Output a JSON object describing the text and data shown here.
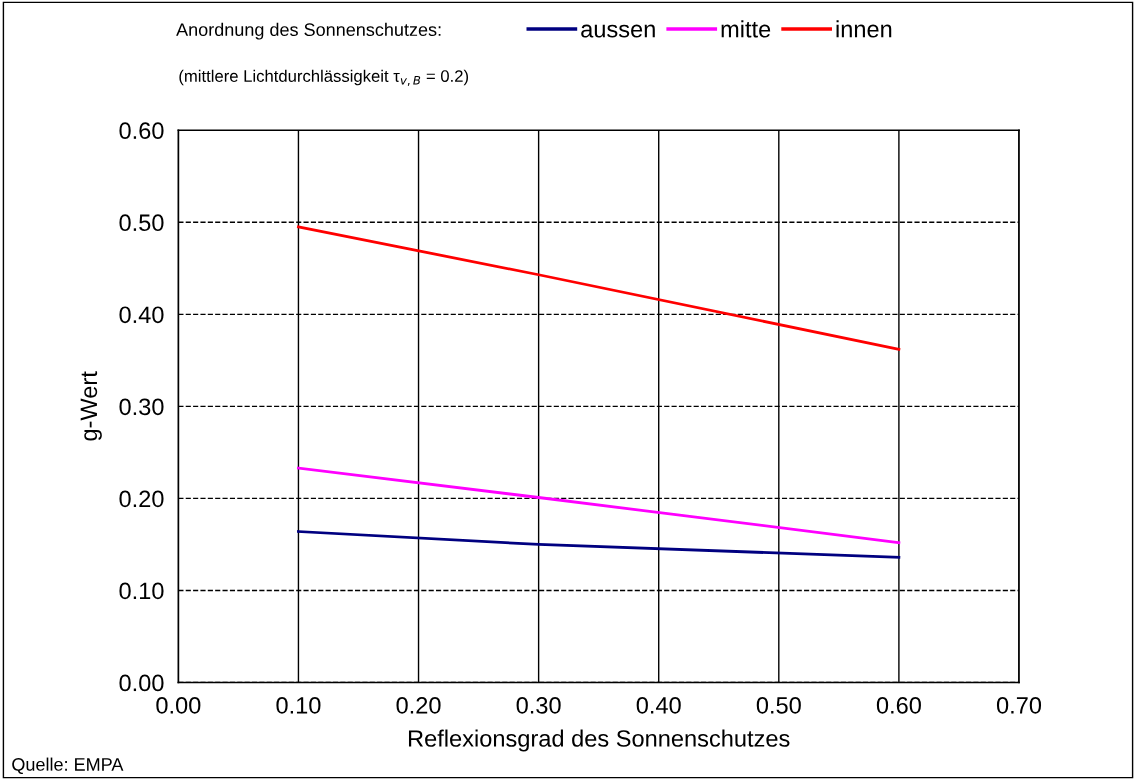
{
  "chart_data": {
    "type": "line",
    "subtitle": "(mittlere Lichtdurchlässigkeit τ$_{v,B}$ = 0.2)",
    "legend_title": "Anordnung des Sonnenschutzes:",
    "xlabel": "Reflexionsgrad des Sonnenschutzes",
    "ylabel": "g-Wert",
    "x": [
      0.1,
      0.3,
      0.6
    ],
    "series": [
      {
        "name": "aussen",
        "color": "#000080",
        "values": [
          0.164,
          0.15,
          0.136
        ]
      },
      {
        "name": "mitte",
        "color": "#ff00ff",
        "values": [
          0.233,
          0.201,
          0.152
        ]
      },
      {
        "name": "innen",
        "color": "#ff0000",
        "values": [
          0.495,
          0.443,
          0.362
        ]
      }
    ],
    "xlim": [
      0,
      0.7
    ],
    "ylim": [
      0,
      0.6
    ],
    "xticks": [
      {
        "value": 0,
        "label": "0.00"
      },
      {
        "value": 0.1,
        "label": "0.10"
      },
      {
        "value": 0.2,
        "label": "0.20"
      },
      {
        "value": 0.3,
        "label": "0.30"
      },
      {
        "value": 0.4,
        "label": "0.40"
      },
      {
        "value": 0.5,
        "label": "0.50"
      },
      {
        "value": 0.6,
        "label": "0.60"
      },
      {
        "value": 0.7,
        "label": "0.70"
      }
    ],
    "yticks": [
      {
        "value": 0,
        "label": "0.00"
      },
      {
        "value": 0.1,
        "label": "0.10"
      },
      {
        "value": 0.2,
        "label": "0.20"
      },
      {
        "value": 0.3,
        "label": "0.30"
      },
      {
        "value": 0.4,
        "label": "0.40"
      },
      {
        "value": 0.5,
        "label": "0.50"
      },
      {
        "value": 0.6,
        "label": "0.60"
      }
    ],
    "grid": true,
    "legend": "top",
    "marker": "none",
    "line_style": "solid",
    "annotations": [
      "Quelle: EMPA"
    ]
  }
}
